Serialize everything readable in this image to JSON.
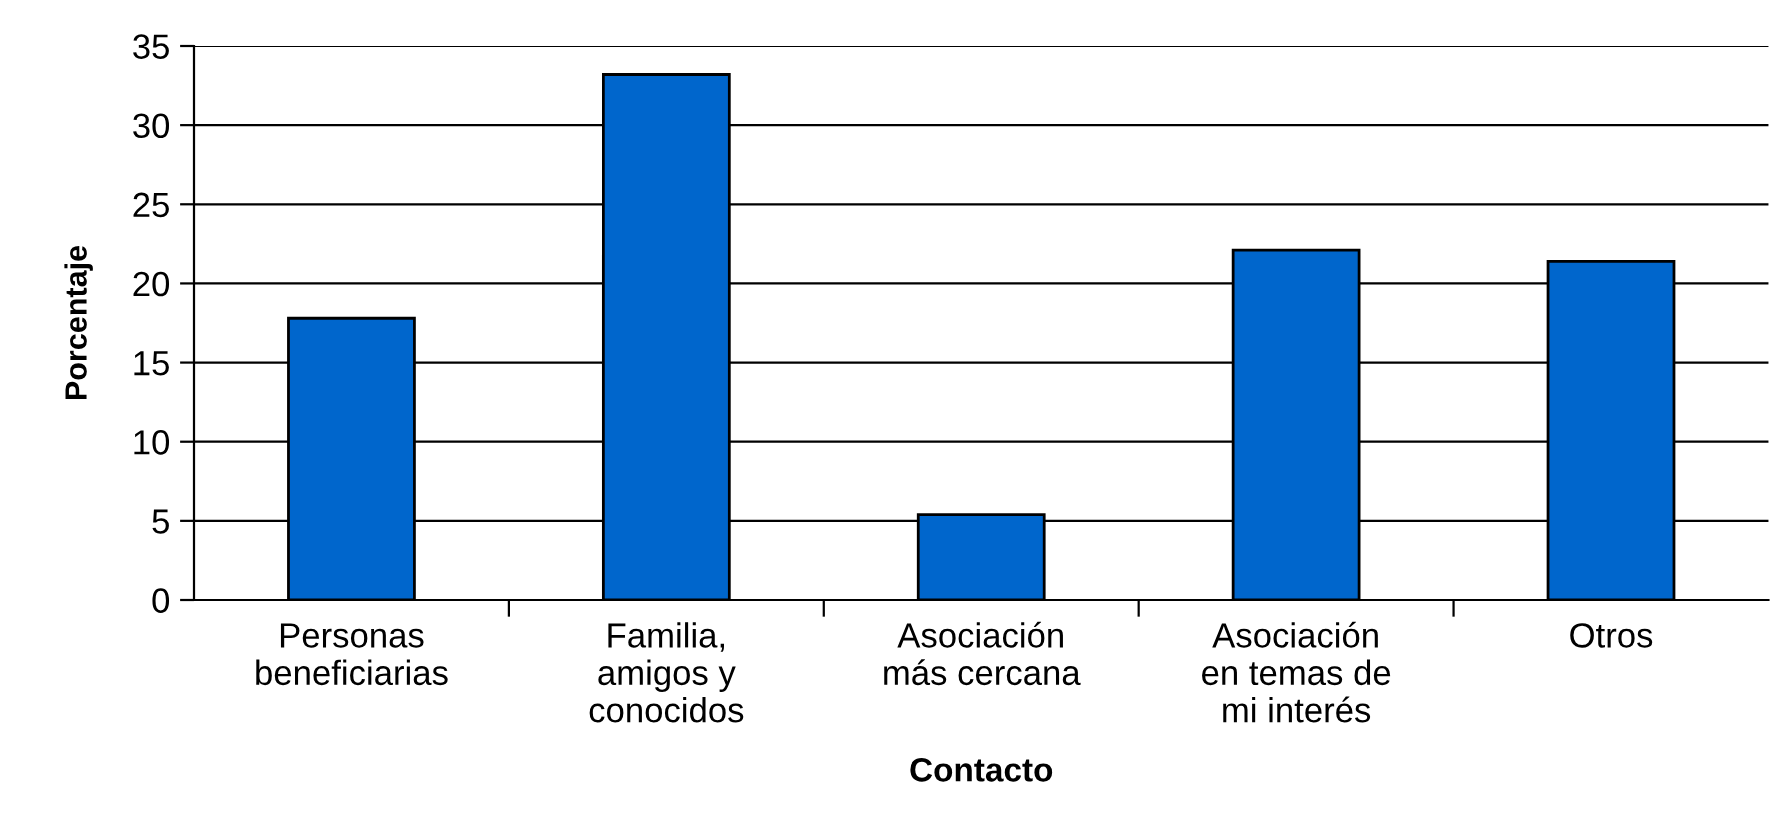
{
  "chart_data": {
    "type": "bar",
    "xlabel": "Contacto",
    "ylabel": "Porcentaje",
    "categories": [
      "Personas\nbeneficiarias",
      "Familia,\namigos y\nconocidos",
      "Asociación\nmás cercana",
      "Asociación\nen temas de\nmi interés",
      "Otros"
    ],
    "values": [
      17.8,
      33.2,
      5.4,
      22.1,
      21.4
    ],
    "color": "#0066cc",
    "ylim": [
      0,
      35
    ],
    "yticks": [
      0,
      5,
      10,
      15,
      20,
      25,
      30,
      35
    ],
    "grid": "y",
    "legend": false
  }
}
